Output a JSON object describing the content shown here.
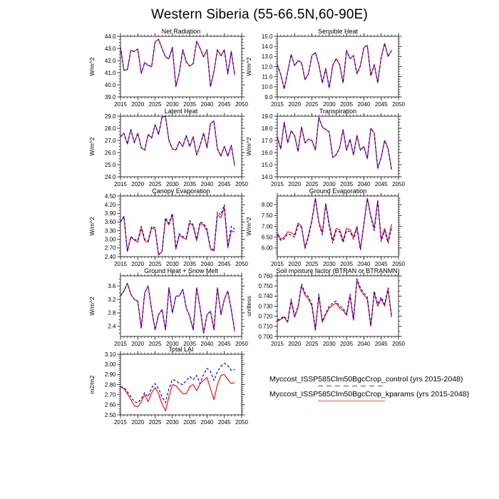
{
  "title": "Western Siberia (55-66.5N,60-90E)",
  "colors": {
    "control_line": "#0000dd",
    "kparams_line": "#ee1111",
    "axis": "#000000",
    "background": "#ffffff"
  },
  "legend": {
    "position": "bottom-right",
    "entries": [
      {
        "label": "Myccost_ISSP585Clm50BgcCrop_control (yrs 2015-2048)",
        "series": "control",
        "style": "dashed",
        "color": "#0000dd",
        "sample_color": "#8c8cd8"
      },
      {
        "label": "Myccost_ISSP585Clm50BgcCrop_kparams (yrs 2015-2048)",
        "series": "kparams",
        "style": "solid",
        "color": "#ee1111",
        "sample_color": "#f49090"
      }
    ]
  },
  "chart_data": [
    {
      "type": "line",
      "title": "Net Radiation",
      "ylabel": "W/m^2",
      "xlim": [
        2015,
        2050
      ],
      "xticks": [
        2015,
        2020,
        2025,
        2030,
        2035,
        2040,
        2045,
        2050
      ],
      "x_start": 2015,
      "ylim": [
        39.0,
        44.0
      ],
      "yticks": [
        39.0,
        40.0,
        41.0,
        42.0,
        43.0,
        44.0
      ],
      "ydecimals": 1,
      "yminor": 3,
      "grid": false,
      "series": [
        {
          "name": "control",
          "color": "#0000dd",
          "dash": true,
          "values": [
            43.1,
            41.2,
            41.25,
            42.85,
            42.75,
            42.95,
            40.95,
            41.85,
            41.6,
            41.5,
            43.55,
            43.75,
            43.0,
            42.3,
            42.15,
            43.1,
            39.85,
            41.0,
            42.9,
            41.9,
            41.55,
            41.75,
            43.6,
            43.0,
            42.3,
            42.9,
            39.85,
            41.1,
            42.9,
            42.4,
            42.9,
            40.9,
            42.75,
            40.8
          ]
        },
        {
          "name": "kparams",
          "color": "#ee1111",
          "dash": false,
          "values": [
            43.1,
            41.2,
            41.25,
            42.85,
            42.75,
            42.95,
            40.95,
            41.85,
            41.6,
            41.5,
            43.55,
            43.75,
            43.0,
            42.3,
            42.15,
            43.1,
            39.85,
            41.0,
            42.9,
            41.9,
            41.55,
            41.75,
            43.6,
            43.0,
            42.3,
            42.9,
            39.85,
            41.1,
            42.9,
            42.4,
            42.9,
            40.9,
            42.75,
            40.8
          ]
        }
      ]
    },
    {
      "type": "line",
      "title": "Sensible Heat",
      "ylabel": "W/m^2",
      "xlim": [
        2015,
        2050
      ],
      "xticks": [
        2015,
        2020,
        2025,
        2030,
        2035,
        2040,
        2045,
        2050
      ],
      "x_start": 2015,
      "ylim": [
        9.0,
        15.0
      ],
      "yticks": [
        9.0,
        10.0,
        11.0,
        12.0,
        13.0,
        14.0,
        15.0
      ],
      "ydecimals": 1,
      "yminor": 3,
      "grid": false,
      "series": [
        {
          "name": "control",
          "color": "#0000dd",
          "dash": true,
          "values": [
            12.2,
            11.2,
            9.8,
            11.5,
            13.2,
            12.1,
            12.6,
            12.4,
            10.7,
            11.3,
            13.1,
            13.4,
            12.2,
            10.4,
            11.8,
            9.9,
            12.1,
            12.8,
            12.2,
            10.4,
            13.6,
            12.8,
            13.1,
            11.3,
            12.1,
            13.9,
            14.1,
            11.1,
            12.2,
            10.4,
            12.9,
            14.3,
            13.0,
            13.6
          ]
        },
        {
          "name": "kparams",
          "color": "#ee1111",
          "dash": false,
          "values": [
            12.2,
            11.2,
            9.8,
            11.5,
            13.2,
            12.1,
            12.6,
            12.4,
            10.7,
            11.3,
            13.1,
            13.4,
            12.2,
            10.4,
            11.8,
            9.9,
            12.1,
            12.8,
            12.2,
            10.4,
            13.6,
            12.8,
            13.1,
            11.3,
            12.1,
            13.9,
            14.1,
            11.1,
            12.2,
            10.4,
            12.9,
            14.3,
            13.0,
            13.6
          ]
        }
      ]
    },
    {
      "type": "line",
      "title": "Latent Heat",
      "ylabel": "W/m^2",
      "xlim": [
        2015,
        2050
      ],
      "xticks": [
        2015,
        2020,
        2025,
        2030,
        2035,
        2040,
        2045,
        2050
      ],
      "x_start": 2015,
      "ylim": [
        24.0,
        29.0
      ],
      "yticks": [
        24.0,
        25.0,
        26.0,
        27.0,
        28.0,
        29.0
      ],
      "ydecimals": 1,
      "yminor": 3,
      "grid": false,
      "series": [
        {
          "name": "control",
          "color": "#0000dd",
          "dash": true,
          "values": [
            27.3,
            27.6,
            26.7,
            27.9,
            26.8,
            27.6,
            26.4,
            26.2,
            27.5,
            27.2,
            28.3,
            27.5,
            28.9,
            29.0,
            27.0,
            26.3,
            26.2,
            26.9,
            26.5,
            27.4,
            26.5,
            27.3,
            25.8,
            26.6,
            27.6,
            26.4,
            28.4,
            28.6,
            26.3,
            25.7,
            26.5,
            25.7,
            26.6,
            24.9
          ]
        },
        {
          "name": "kparams",
          "color": "#ee1111",
          "dash": false,
          "values": [
            27.3,
            27.6,
            26.7,
            27.9,
            26.8,
            27.6,
            26.4,
            26.2,
            27.5,
            27.2,
            28.3,
            27.5,
            28.9,
            29.0,
            27.0,
            26.3,
            26.2,
            26.9,
            26.5,
            27.4,
            26.5,
            27.3,
            25.8,
            26.6,
            27.6,
            26.4,
            28.4,
            28.6,
            26.3,
            25.7,
            26.5,
            25.7,
            26.6,
            24.9
          ]
        }
      ]
    },
    {
      "type": "line",
      "title": "Transpiration",
      "ylabel": "W/m^2",
      "xlim": [
        2015,
        2050
      ],
      "xticks": [
        2015,
        2020,
        2025,
        2030,
        2035,
        2040,
        2045,
        2050
      ],
      "x_start": 2015,
      "ylim": [
        14.0,
        19.0
      ],
      "yticks": [
        14.0,
        15.0,
        16.0,
        17.0,
        18.0,
        19.0
      ],
      "ydecimals": 1,
      "yminor": 3,
      "grid": false,
      "series": [
        {
          "name": "control",
          "color": "#0000dd",
          "dash": true,
          "values": [
            17.3,
            16.3,
            18.5,
            16.8,
            17.8,
            17.4,
            16.1,
            18.1,
            16.8,
            17.1,
            17.0,
            16.2,
            18.9,
            18.1,
            17.9,
            17.7,
            15.6,
            15.8,
            16.4,
            17.9,
            16.2,
            17.1,
            15.8,
            17.4,
            16.2,
            16.5,
            15.5,
            18.0,
            17.6,
            14.7,
            15.6,
            17.0,
            16.3,
            14.6
          ]
        },
        {
          "name": "kparams",
          "color": "#ee1111",
          "dash": false,
          "values": [
            17.3,
            16.3,
            18.5,
            16.8,
            17.8,
            17.4,
            16.1,
            18.1,
            16.8,
            17.1,
            17.0,
            16.2,
            18.9,
            18.1,
            17.9,
            17.7,
            15.6,
            15.8,
            16.4,
            17.9,
            16.2,
            17.1,
            15.8,
            17.4,
            16.2,
            16.5,
            15.5,
            18.0,
            17.6,
            14.7,
            15.6,
            17.0,
            16.3,
            14.6
          ]
        }
      ]
    },
    {
      "type": "line",
      "title": "Canopy Evaporation",
      "ylabel": "W/m^2",
      "xlim": [
        2015,
        2050
      ],
      "xticks": [
        2015,
        2020,
        2025,
        2030,
        2035,
        2040,
        2045,
        2050
      ],
      "x_start": 2015,
      "ylim": [
        2.4,
        4.5
      ],
      "yticks": [
        2.4,
        2.7,
        3.0,
        3.3,
        3.6,
        3.9,
        4.2,
        4.5
      ],
      "ydecimals": 2,
      "yminor": 2,
      "grid": false,
      "series": [
        {
          "name": "control",
          "color": "#0000dd",
          "dash": true,
          "values": [
            3.6,
            3.8,
            2.6,
            3.1,
            3.0,
            2.95,
            3.45,
            3.0,
            2.95,
            3.45,
            3.4,
            2.45,
            2.6,
            3.75,
            3.55,
            3.9,
            2.7,
            3.2,
            3.1,
            3.05,
            3.65,
            3.5,
            3.0,
            3.6,
            3.55,
            3.35,
            2.7,
            2.62,
            3.95,
            3.85,
            4.2,
            2.75,
            3.45,
            3.35
          ]
        },
        {
          "name": "kparams",
          "color": "#ee1111",
          "dash": false,
          "values": [
            3.6,
            3.78,
            2.58,
            3.08,
            2.97,
            2.9,
            3.4,
            2.95,
            2.9,
            3.4,
            3.35,
            2.45,
            2.58,
            3.7,
            3.5,
            3.85,
            2.65,
            3.15,
            3.05,
            3.0,
            3.58,
            3.45,
            2.95,
            3.55,
            3.5,
            3.28,
            2.65,
            2.6,
            3.85,
            3.75,
            4.1,
            2.7,
            3.3,
            3.25
          ]
        }
      ]
    },
    {
      "type": "line",
      "title": "Ground Evaporation",
      "ylabel": "W/m^2",
      "xlim": [
        2015,
        2050
      ],
      "xticks": [
        2015,
        2020,
        2025,
        2030,
        2035,
        2040,
        2045,
        2050
      ],
      "x_start": 2015,
      "ylim": [
        5.6,
        8.4
      ],
      "yticks": [
        6.0,
        6.5,
        7.0,
        7.5,
        8.0
      ],
      "ydecimals": 2,
      "yminor": 4,
      "grid": false,
      "series": [
        {
          "name": "control",
          "color": "#0000dd",
          "dash": true,
          "values": [
            6.6,
            6.35,
            6.42,
            6.65,
            6.6,
            6.5,
            7.05,
            6.95,
            5.98,
            6.5,
            7.25,
            8.28,
            7.15,
            6.6,
            8.0,
            7.0,
            6.22,
            6.8,
            6.75,
            6.25,
            6.8,
            6.75,
            6.4,
            6.9,
            5.92,
            7.05,
            8.28,
            7.45,
            6.8,
            8.15,
            6.3,
            6.8,
            6.22,
            6.95
          ]
        },
        {
          "name": "kparams",
          "color": "#ee1111",
          "dash": false,
          "values": [
            6.7,
            6.4,
            6.5,
            6.75,
            6.7,
            6.6,
            7.15,
            7.0,
            6.0,
            6.6,
            7.3,
            8.3,
            7.2,
            6.7,
            8.05,
            7.1,
            6.35,
            6.9,
            6.85,
            6.35,
            6.9,
            6.85,
            6.5,
            7.0,
            5.95,
            7.1,
            8.3,
            7.5,
            6.9,
            8.2,
            6.4,
            6.9,
            6.3,
            7.1
          ]
        }
      ]
    },
    {
      "type": "line",
      "title": "Ground Heat + Snow Melt",
      "ylabel": "W/m^2",
      "xlim": [
        2015,
        2050
      ],
      "xticks": [
        2015,
        2020,
        2025,
        2030,
        2035,
        2040,
        2045,
        2050
      ],
      "x_start": 2015,
      "ylim": [
        2.1,
        3.9
      ],
      "yticks": [
        2.4,
        2.8,
        3.2,
        3.6
      ],
      "ydecimals": 1,
      "yminor": 3,
      "grid": false,
      "series": [
        {
          "name": "control",
          "color": "#0000dd",
          "dash": true,
          "values": [
            3.3,
            3.45,
            3.68,
            3.35,
            3.2,
            3.15,
            2.35,
            3.4,
            3.6,
            2.9,
            2.3,
            2.75,
            2.9,
            2.3,
            3.55,
            2.8,
            3.3,
            3.3,
            3.5,
            2.95,
            2.7,
            2.3,
            3.55,
            2.95,
            2.2,
            2.75,
            2.85,
            2.3,
            3.55,
            2.75,
            3.2,
            3.45,
            2.9,
            2.25
          ]
        },
        {
          "name": "kparams",
          "color": "#ee1111",
          "dash": false,
          "values": [
            3.3,
            3.45,
            3.68,
            3.35,
            3.2,
            3.15,
            2.35,
            3.4,
            3.6,
            2.9,
            2.3,
            2.75,
            2.9,
            2.3,
            3.55,
            2.8,
            3.3,
            3.3,
            3.5,
            2.95,
            2.7,
            2.3,
            3.55,
            2.95,
            2.2,
            2.75,
            2.85,
            2.3,
            3.55,
            2.75,
            3.2,
            3.45,
            2.9,
            2.25
          ]
        }
      ]
    },
    {
      "type": "line",
      "title": "Soil moisture factor (BTRAN or BTRANMN)",
      "ylabel": "unitless",
      "xlim": [
        2015,
        2050
      ],
      "xticks": [
        2015,
        2020,
        2025,
        2030,
        2035,
        2040,
        2045,
        2050
      ],
      "x_start": 2015,
      "ylim": [
        0.7,
        0.76
      ],
      "yticks": [
        0.7,
        0.71,
        0.72,
        0.73,
        0.74,
        0.75,
        0.76
      ],
      "ydecimals": 3,
      "yminor": 1,
      "grid": false,
      "series": [
        {
          "name": "control",
          "color": "#0000dd",
          "dash": true,
          "values": [
            0.716,
            0.718,
            0.72,
            0.715,
            0.737,
            0.72,
            0.73,
            0.752,
            0.743,
            0.739,
            0.732,
            0.707,
            0.742,
            0.715,
            0.723,
            0.73,
            0.733,
            0.735,
            0.73,
            0.728,
            0.722,
            0.742,
            0.717,
            0.757,
            0.748,
            0.743,
            0.739,
            0.711,
            0.745,
            0.732,
            0.739,
            0.732,
            0.748,
            0.72
          ]
        },
        {
          "name": "kparams",
          "color": "#ee1111",
          "dash": false,
          "values": [
            0.715,
            0.717,
            0.719,
            0.714,
            0.735,
            0.719,
            0.729,
            0.75,
            0.741,
            0.737,
            0.73,
            0.706,
            0.74,
            0.714,
            0.722,
            0.728,
            0.731,
            0.733,
            0.728,
            0.726,
            0.721,
            0.74,
            0.716,
            0.756,
            0.746,
            0.741,
            0.737,
            0.71,
            0.743,
            0.73,
            0.737,
            0.73,
            0.747,
            0.719
          ]
        }
      ]
    },
    {
      "type": "line",
      "title": "Total LAI",
      "ylabel": "m2/m2",
      "xlim": [
        2015,
        2050
      ],
      "xticks": [
        2015,
        2020,
        2025,
        2030,
        2035,
        2040,
        2045,
        2050
      ],
      "x_start": 2015,
      "ylim": [
        2.5,
        3.1
      ],
      "yticks": [
        2.5,
        2.6,
        2.7,
        2.8,
        2.9,
        3.0,
        3.1
      ],
      "ydecimals": 2,
      "yminor": 4,
      "grid": false,
      "series": [
        {
          "name": "control",
          "color": "#0000dd",
          "dash": true,
          "values": [
            2.78,
            2.77,
            2.73,
            2.68,
            2.63,
            2.62,
            2.66,
            2.72,
            2.68,
            2.77,
            2.81,
            2.76,
            2.68,
            2.62,
            2.76,
            2.85,
            2.84,
            2.81,
            2.8,
            2.84,
            2.88,
            2.85,
            2.89,
            2.81,
            2.9,
            2.96,
            2.93,
            2.84,
            2.93,
            2.98,
            3.01,
            2.99,
            2.94,
            2.95
          ]
        },
        {
          "name": "kparams",
          "color": "#ee1111",
          "dash": false,
          "values": [
            2.78,
            2.76,
            2.71,
            2.65,
            2.59,
            2.58,
            2.63,
            2.7,
            2.63,
            2.72,
            2.77,
            2.71,
            2.61,
            2.54,
            2.68,
            2.8,
            2.79,
            2.75,
            2.71,
            2.71,
            2.78,
            2.8,
            2.74,
            2.81,
            2.84,
            2.87,
            2.76,
            2.65,
            2.8,
            2.89,
            2.9,
            2.85,
            2.81,
            2.82
          ]
        }
      ]
    }
  ]
}
